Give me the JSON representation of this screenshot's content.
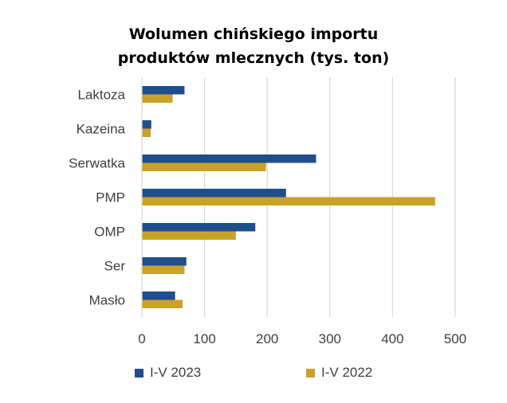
{
  "chart_data": {
    "type": "bar",
    "orientation": "horizontal",
    "title_lines": [
      "Wolumen chińskiego importu",
      "produktów mlecznych (tys. ton)"
    ],
    "categories": [
      "Laktoza",
      "Kazeina",
      "Serwatka",
      "PMP",
      "OMP",
      "Ser",
      "Masło"
    ],
    "series": [
      {
        "name": "I-V 2023",
        "color": "#1F4E8C",
        "values": [
          68,
          15,
          278,
          230,
          181,
          71,
          53
        ]
      },
      {
        "name": "I-V 2022",
        "color": "#C9A227",
        "values": [
          49,
          14,
          198,
          468,
          150,
          68,
          65
        ]
      }
    ],
    "xlim": [
      0,
      500
    ],
    "xticks": [
      0,
      100,
      200,
      300,
      400,
      500
    ],
    "grid": "vertical",
    "legend_position": "bottom"
  }
}
